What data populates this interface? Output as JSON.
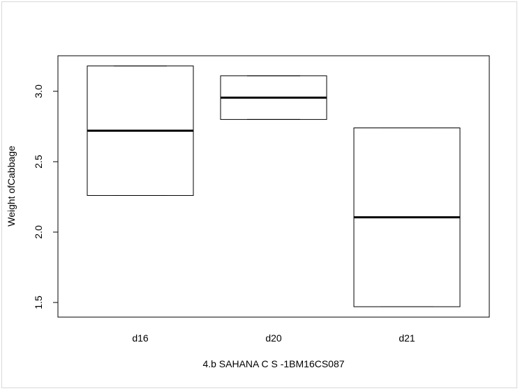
{
  "chart_data": {
    "type": "boxplot",
    "title": "",
    "xlabel": "4.b SAHANA C S -1BM16CS087",
    "ylabel": "Weight ofCabbage",
    "categories": [
      "d16",
      "d20",
      "d21"
    ],
    "boxes": [
      {
        "name": "d16",
        "min": 2.26,
        "q1": 2.26,
        "median": 2.72,
        "q3": 3.18,
        "max": 3.18
      },
      {
        "name": "d20",
        "min": 2.8,
        "q1": 2.8,
        "median": 2.955,
        "q3": 3.11,
        "max": 3.11
      },
      {
        "name": "d21",
        "min": 1.47,
        "q1": 1.47,
        "median": 2.105,
        "q3": 2.74,
        "max": 2.74
      }
    ],
    "yticks": [
      "1.5",
      "2.0",
      "2.5",
      "3.0"
    ],
    "ylim": [
      1.4,
      3.25
    ],
    "grid": false,
    "legend": "none"
  }
}
